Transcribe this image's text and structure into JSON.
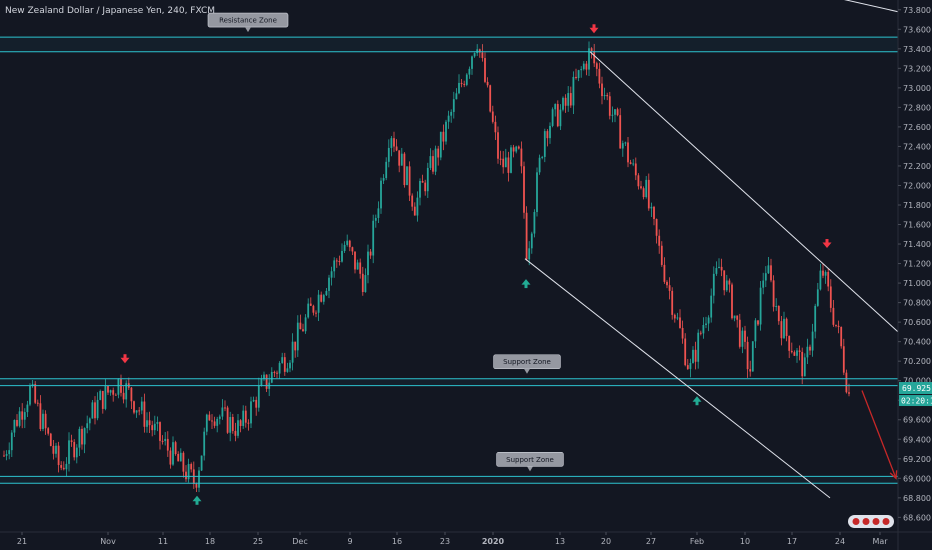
{
  "chart_data": {
    "type": "candlestick",
    "title": "New Zealand Dollar / Japanese Yen, 240, FXCM",
    "ylim": [
      68.45,
      73.9
    ],
    "y_ticks": [
      "73.800",
      "73.600",
      "73.400",
      "73.200",
      "73.000",
      "72.800",
      "72.600",
      "72.400",
      "72.200",
      "72.000",
      "71.800",
      "71.600",
      "71.400",
      "71.200",
      "71.000",
      "70.800",
      "70.600",
      "70.400",
      "70.200",
      "70.000",
      "69.800",
      "69.600",
      "69.400",
      "69.200",
      "69.000",
      "68.800",
      "68.600"
    ],
    "x_ticks": [
      "21",
      "Nov",
      "11",
      "18",
      "25",
      "Dec",
      "9",
      "16",
      "23",
      "2020",
      "13",
      "20",
      "27",
      "Feb",
      "10",
      "17",
      "24",
      "Mar"
    ],
    "price_labels": {
      "last": "69.925",
      "countdown": "02:20:13"
    },
    "zones": [
      {
        "label": "Resistance Zone",
        "upper": 73.52,
        "lower": 73.37
      },
      {
        "label": "Support Zone",
        "upper": 70.02,
        "lower": 69.95
      },
      {
        "label": "Support Zone",
        "upper": 69.02,
        "lower": 68.95
      }
    ],
    "path_keyframes": [
      {
        "t": 0,
        "v": 69.1
      },
      {
        "t": 12,
        "v": 69.5
      },
      {
        "t": 30,
        "v": 69.9
      },
      {
        "t": 60,
        "v": 69.1
      },
      {
        "t": 100,
        "v": 69.8
      },
      {
        "t": 120,
        "v": 70.0
      },
      {
        "t": 160,
        "v": 69.4
      },
      {
        "t": 195,
        "v": 68.95
      },
      {
        "t": 210,
        "v": 69.7
      },
      {
        "t": 240,
        "v": 69.5
      },
      {
        "t": 260,
        "v": 69.9
      },
      {
        "t": 290,
        "v": 70.3
      },
      {
        "t": 320,
        "v": 70.9
      },
      {
        "t": 345,
        "v": 71.4
      },
      {
        "t": 365,
        "v": 71.0
      },
      {
        "t": 390,
        "v": 72.6
      },
      {
        "t": 415,
        "v": 71.8
      },
      {
        "t": 440,
        "v": 72.4
      },
      {
        "t": 460,
        "v": 73.0
      },
      {
        "t": 477,
        "v": 73.52
      },
      {
        "t": 500,
        "v": 72.2
      },
      {
        "t": 520,
        "v": 72.3
      },
      {
        "t": 527,
        "v": 71.3
      },
      {
        "t": 545,
        "v": 72.6
      },
      {
        "t": 565,
        "v": 72.8
      },
      {
        "t": 590,
        "v": 73.37
      },
      {
        "t": 610,
        "v": 72.8
      },
      {
        "t": 635,
        "v": 72.1
      },
      {
        "t": 645,
        "v": 72.0
      },
      {
        "t": 650,
        "v": 71.7
      },
      {
        "t": 690,
        "v": 70.1
      },
      {
        "t": 720,
        "v": 71.2
      },
      {
        "t": 750,
        "v": 70.1
      },
      {
        "t": 765,
        "v": 71.2
      },
      {
        "t": 780,
        "v": 70.6
      },
      {
        "t": 805,
        "v": 70.1
      },
      {
        "t": 822,
        "v": 71.15
      },
      {
        "t": 840,
        "v": 70.4
      },
      {
        "t": 850,
        "v": 69.8
      }
    ],
    "drawings": {
      "channel_upper": [
        {
          "t": 590,
          "v": 73.37
        },
        {
          "t": 898,
          "v": 70.5
        }
      ],
      "channel_lower": [
        {
          "t": 525,
          "v": 71.25
        },
        {
          "t": 830,
          "v": 68.8
        }
      ],
      "top_right_line": [
        {
          "t": 760,
          "v": 74.1
        },
        {
          "t": 898,
          "v": 73.78
        }
      ],
      "projection_arrow": [
        {
          "t": 862,
          "v": 69.9
        },
        {
          "t": 896,
          "v": 69.0
        }
      ]
    },
    "markers": [
      {
        "type": "down",
        "t": 125,
        "v": 70.22,
        "color": "#f23645"
      },
      {
        "type": "up",
        "t": 197,
        "v": 68.78,
        "color": "#22ab94"
      },
      {
        "type": "up",
        "t": 526,
        "v": 71.0,
        "color": "#22ab94"
      },
      {
        "type": "down",
        "t": 594,
        "v": 73.6,
        "color": "#f23645"
      },
      {
        "type": "up",
        "t": 697,
        "v": 69.8,
        "color": "#22ab94"
      },
      {
        "type": "down",
        "t": 827,
        "v": 71.4,
        "color": "#f23645"
      }
    ],
    "colors": {
      "background": "#131722",
      "up_candle": "#26a69a",
      "down_candle": "#ef5350",
      "zone_line": "#2cc3cf",
      "drawing_line": "#e0e3eb",
      "arrow": "#c62828",
      "axis_text": "#b2b5be",
      "price_tag": "#26a69a"
    }
  }
}
